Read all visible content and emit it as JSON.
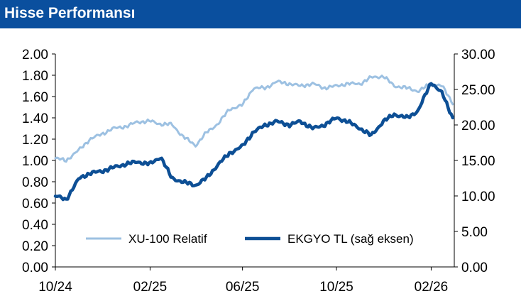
{
  "header": {
    "title": "Hisse Performansı"
  },
  "colors": {
    "header_bg": "#0a4f9e",
    "xu100": "#9dc1e2",
    "ekgyo": "#0d4f95"
  },
  "chart_data": {
    "type": "line",
    "x_ticks": [
      "10/24",
      "02/25",
      "06/25",
      "10/25",
      "02/26"
    ],
    "y_left": {
      "ticks": [
        "0.00",
        "0.20",
        "0.40",
        "0.60",
        "0.80",
        "1.00",
        "1.20",
        "1.40",
        "1.60",
        "1.80",
        "2.00"
      ],
      "ylim": [
        0,
        2
      ]
    },
    "y_right": {
      "ticks": [
        "0.00",
        "5.00",
        "10.00",
        "15.00",
        "20.00",
        "25.00",
        "30.00"
      ],
      "ylim": [
        0,
        30
      ]
    },
    "legend_position": "bottom-right",
    "series": [
      {
        "name": "XU-100 Relatif",
        "axis": "left",
        "x": [
          "2024-10-01",
          "2024-10-15",
          "2024-11-01",
          "2024-11-15",
          "2024-12-01",
          "2024-12-15",
          "2025-01-01",
          "2025-01-15",
          "2025-02-01",
          "2025-02-15",
          "2025-03-01",
          "2025-03-15",
          "2025-04-01",
          "2025-04-15",
          "2025-05-01",
          "2025-05-15",
          "2025-06-01",
          "2025-06-15",
          "2025-07-01",
          "2025-07-15",
          "2025-08-01",
          "2025-08-15",
          "2025-09-01",
          "2025-09-15",
          "2025-10-01",
          "2025-10-15",
          "2025-11-01",
          "2025-11-15",
          "2025-12-01",
          "2025-12-15",
          "2026-01-01",
          "2026-01-15",
          "2026-02-01",
          "2026-02-15",
          "2026-03-01"
        ],
        "values": [
          1.02,
          1.0,
          1.1,
          1.2,
          1.25,
          1.3,
          1.32,
          1.36,
          1.37,
          1.34,
          1.34,
          1.23,
          1.14,
          1.26,
          1.35,
          1.48,
          1.52,
          1.68,
          1.68,
          1.74,
          1.72,
          1.7,
          1.72,
          1.68,
          1.7,
          1.72,
          1.72,
          1.78,
          1.79,
          1.7,
          1.68,
          1.65,
          1.72,
          1.7,
          1.54
        ]
      },
      {
        "name": "EKGYO TL (sağ eksen)",
        "axis": "right",
        "x": [
          "2024-10-01",
          "2024-10-15",
          "2024-11-01",
          "2024-11-15",
          "2024-12-01",
          "2024-12-15",
          "2025-01-01",
          "2025-01-15",
          "2025-02-01",
          "2025-02-15",
          "2025-03-01",
          "2025-03-15",
          "2025-04-01",
          "2025-04-15",
          "2025-05-01",
          "2025-05-15",
          "2025-06-01",
          "2025-06-15",
          "2025-07-01",
          "2025-07-15",
          "2025-08-01",
          "2025-08-15",
          "2025-09-01",
          "2025-09-15",
          "2025-10-01",
          "2025-10-15",
          "2025-11-01",
          "2025-11-15",
          "2025-12-01",
          "2025-12-15",
          "2026-01-01",
          "2026-01-15",
          "2026-02-01",
          "2026-02-15",
          "2026-03-01"
        ],
        "values": [
          10.0,
          9.5,
          12.5,
          13.2,
          13.5,
          14.0,
          14.5,
          14.8,
          14.5,
          15.5,
          12.5,
          12.0,
          11.5,
          12.5,
          14.5,
          16.0,
          17.0,
          19.0,
          20.0,
          20.5,
          20.0,
          20.5,
          19.5,
          20.0,
          21.0,
          20.5,
          19.5,
          18.5,
          20.5,
          21.5,
          21.0,
          22.0,
          26.0,
          24.5,
          21.0
        ]
      }
    ]
  }
}
